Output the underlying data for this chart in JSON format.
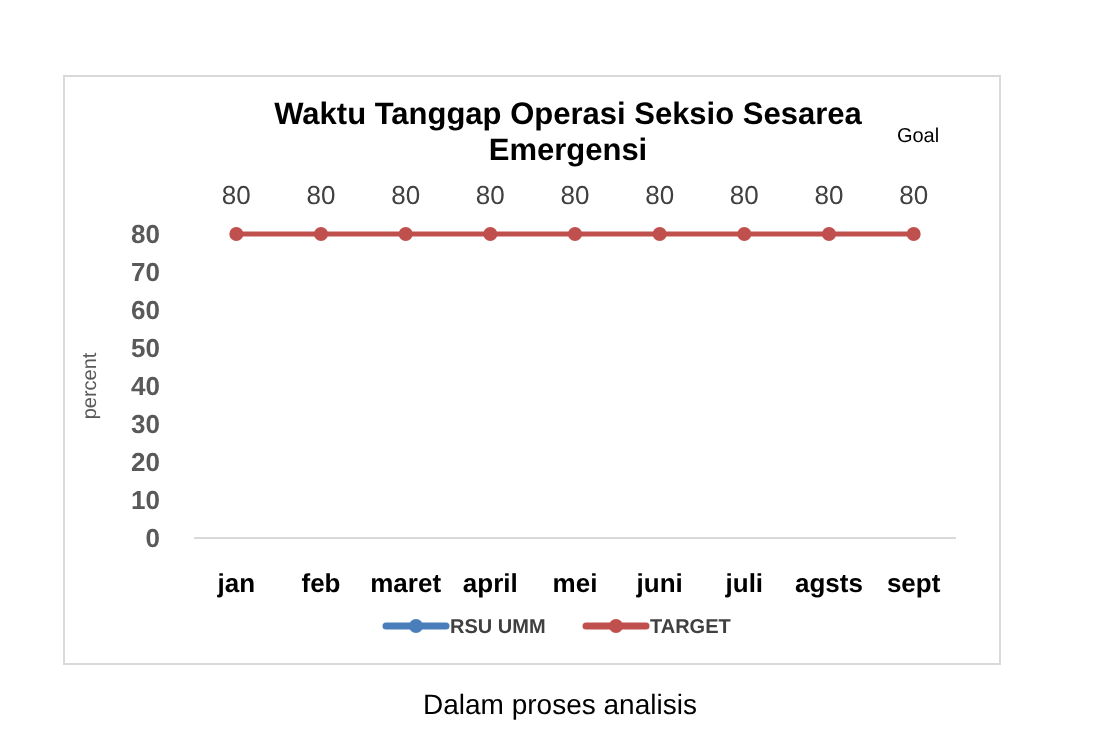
{
  "chart_data": {
    "type": "line",
    "title": "Waktu Tanggap Operasi Seksio Sesarea Emergensi",
    "ylabel": "percent",
    "categories": [
      "jan",
      "feb",
      "maret",
      "april",
      "mei",
      "juni",
      "juli",
      "agsts",
      "sept"
    ],
    "series": [
      {
        "name": "RSU UMM",
        "color": "#4a7ebb",
        "values": [
          null,
          null,
          null,
          null,
          null,
          null,
          null,
          null,
          null
        ]
      },
      {
        "name": "TARGET",
        "color": "#c0504d",
        "values": [
          80,
          80,
          80,
          80,
          80,
          80,
          80,
          80,
          80
        ]
      }
    ],
    "ylim": [
      0,
      80
    ],
    "yticks": [
      0,
      10,
      20,
      30,
      40,
      50,
      60,
      70,
      80
    ],
    "grid": false,
    "legend": "bottom",
    "marker": "circle",
    "line_style": "solid",
    "data_labels": true,
    "annotations": [
      "Goal",
      "Dalam proses analisis"
    ]
  }
}
